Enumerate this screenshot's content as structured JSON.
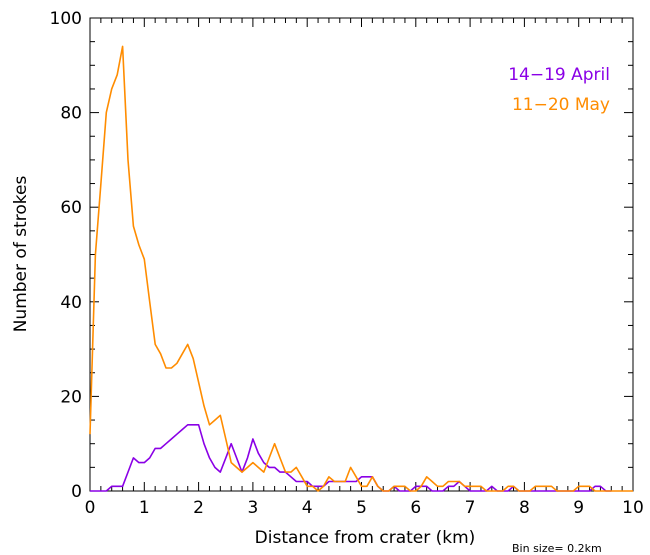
{
  "chart_data": {
    "type": "line",
    "title": "",
    "xlabel": "Distance from crater (km)",
    "ylabel": "Number of strokes",
    "note": "Bin size= 0.2km",
    "xlim": [
      0,
      10
    ],
    "ylim": [
      0,
      100
    ],
    "x_ticks": [
      0,
      1,
      2,
      3,
      4,
      5,
      6,
      7,
      8,
      9,
      10
    ],
    "y_ticks": [
      0,
      20,
      40,
      60,
      80,
      100
    ],
    "grid": false,
    "legend_position": "top-right",
    "series": [
      {
        "name": "14−19 April",
        "color": "#8a00e6",
        "x": [
          0.0,
          0.1,
          0.2,
          0.3,
          0.4,
          0.5,
          0.6,
          0.7,
          0.8,
          0.9,
          1.0,
          1.1,
          1.2,
          1.3,
          1.4,
          1.5,
          1.6,
          1.7,
          1.8,
          1.9,
          2.0,
          2.1,
          2.2,
          2.3,
          2.4,
          2.5,
          2.6,
          2.7,
          2.8,
          2.9,
          3.0,
          3.1,
          3.2,
          3.3,
          3.4,
          3.5,
          3.6,
          3.7,
          3.8,
          3.9,
          4.0,
          4.1,
          4.2,
          4.3,
          4.4,
          4.5,
          4.6,
          4.7,
          4.8,
          4.9,
          5.0,
          5.1,
          5.2,
          5.3,
          5.4,
          5.5,
          5.6,
          5.7,
          5.8,
          5.9,
          6.0,
          6.1,
          6.2,
          6.3,
          6.4,
          6.5,
          6.6,
          6.7,
          6.8,
          6.9,
          7.0,
          7.1,
          7.2,
          7.3,
          7.4,
          7.5,
          7.6,
          7.7,
          7.8,
          7.9,
          8.0,
          8.1,
          8.2,
          8.3,
          8.4,
          8.5,
          8.6,
          8.7,
          8.8,
          8.9,
          9.0,
          9.1,
          9.2,
          9.3,
          9.4,
          9.5,
          9.6
        ],
        "y": [
          0,
          0,
          0,
          0,
          1,
          1,
          1,
          4,
          7,
          6,
          6,
          7,
          9,
          9,
          10,
          11,
          12,
          13,
          14,
          14,
          14,
          10,
          7,
          5,
          4,
          7,
          10,
          7,
          4,
          7,
          11,
          8,
          6,
          5,
          5,
          4,
          4,
          3,
          2,
          2,
          2,
          1,
          1,
          1,
          2,
          2,
          2,
          2,
          2,
          2,
          3,
          3,
          3,
          1,
          0,
          0,
          1,
          0,
          0,
          0,
          1,
          1,
          1,
          0,
          0,
          0,
          1,
          1,
          2,
          1,
          0,
          0,
          0,
          0,
          1,
          0,
          0,
          0,
          1,
          0,
          0,
          0,
          0,
          0,
          0,
          0,
          0,
          0,
          0,
          0,
          0,
          0,
          0,
          1,
          1,
          0,
          0
        ]
      },
      {
        "name": "11−20 May",
        "color": "#ff8c00",
        "x": [
          0.0,
          0.1,
          0.2,
          0.3,
          0.4,
          0.5,
          0.6,
          0.7,
          0.8,
          0.9,
          1.0,
          1.1,
          1.2,
          1.3,
          1.4,
          1.5,
          1.6,
          1.7,
          1.8,
          1.9,
          2.0,
          2.1,
          2.2,
          2.3,
          2.4,
          2.5,
          2.6,
          2.7,
          2.8,
          2.9,
          3.0,
          3.1,
          3.2,
          3.3,
          3.4,
          3.5,
          3.6,
          3.7,
          3.8,
          3.9,
          4.0,
          4.1,
          4.2,
          4.3,
          4.4,
          4.5,
          4.6,
          4.7,
          4.8,
          4.9,
          5.0,
          5.1,
          5.2,
          5.3,
          5.4,
          5.5,
          5.6,
          5.7,
          5.8,
          5.9,
          6.0,
          6.1,
          6.2,
          6.3,
          6.4,
          6.5,
          6.6,
          6.7,
          6.8,
          6.9,
          7.0,
          7.1,
          7.2,
          7.3,
          7.4,
          7.5,
          7.6,
          7.7,
          7.8,
          7.9,
          8.0,
          8.1,
          8.2,
          8.3,
          8.4,
          8.5,
          8.6,
          8.7,
          8.8,
          8.9,
          9.0,
          9.1,
          9.2,
          9.3,
          9.4,
          9.5,
          9.6,
          9.7,
          9.8,
          9.9,
          10.0
        ],
        "y": [
          12,
          50,
          65,
          80,
          85,
          88,
          94,
          70,
          56,
          52,
          49,
          40,
          31,
          29,
          26,
          26,
          27,
          29,
          31,
          28,
          23,
          18,
          14,
          15,
          16,
          11,
          6,
          5,
          4,
          5,
          6,
          5,
          4,
          7,
          10,
          7,
          4,
          4,
          5,
          3,
          1,
          1,
          0,
          1,
          3,
          2,
          2,
          2,
          5,
          3,
          1,
          1,
          3,
          1,
          0,
          0,
          1,
          1,
          1,
          0,
          0,
          1,
          3,
          2,
          1,
          1,
          2,
          2,
          2,
          1,
          1,
          1,
          1,
          0,
          0,
          0,
          0,
          1,
          1,
          0,
          0,
          0,
          1,
          1,
          1,
          1,
          0,
          0,
          0,
          0,
          1,
          1,
          1,
          0,
          0,
          0,
          0,
          0,
          0,
          0,
          0
        ]
      }
    ]
  }
}
